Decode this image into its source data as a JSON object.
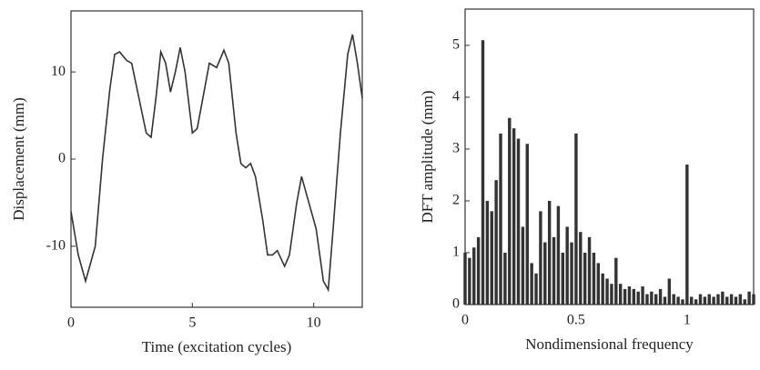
{
  "chart_data": [
    {
      "type": "line",
      "x_label": "Time (excitation cycles)",
      "y_label": "Displacement (mm)",
      "x": [
        0,
        0.3,
        0.6,
        1,
        1.3,
        1.6,
        1.8,
        2.0,
        2.3,
        2.5,
        2.8,
        3.1,
        3.3,
        3.5,
        3.7,
        3.9,
        4.1,
        4.3,
        4.5,
        4.7,
        5.0,
        5.2,
        5.5,
        5.7,
        6.0,
        6.3,
        6.5,
        6.8,
        7.0,
        7.2,
        7.4,
        7.6,
        7.9,
        8.1,
        8.3,
        8.5,
        8.8,
        9.0,
        9.3,
        9.5,
        9.8,
        10.1,
        10.4,
        10.6,
        10.8,
        11.1,
        11.4,
        11.6,
        11.8,
        12.0
      ],
      "values": [
        -6,
        -11,
        -14,
        -10,
        0,
        8,
        12,
        12.3,
        11.3,
        11,
        7,
        3,
        2.5,
        7,
        12.3,
        11,
        7.7,
        10,
        12.8,
        10,
        3,
        3.5,
        8,
        11,
        10.5,
        12.5,
        11,
        3,
        -0.5,
        -1,
        -0.5,
        -2,
        -7,
        -11,
        -11,
        -10.5,
        -12.3,
        -11,
        -5,
        -2,
        -5,
        -8,
        -14,
        -15,
        -8,
        3,
        12,
        14.3,
        11,
        7
      ],
      "color": "#333333",
      "xlim": [
        0,
        12
      ],
      "ylim": [
        -17,
        17
      ],
      "xticks": [
        0,
        5,
        10
      ],
      "yticks": [
        -10,
        0,
        10
      ]
    },
    {
      "type": "bar",
      "x_label": "Nondimensional frequency",
      "y_label": "DFT amplitude (mm)",
      "x": [
        0,
        0.02,
        0.04,
        0.06,
        0.08,
        0.1,
        0.12,
        0.14,
        0.16,
        0.18,
        0.2,
        0.22,
        0.24,
        0.26,
        0.28,
        0.3,
        0.32,
        0.34,
        0.36,
        0.38,
        0.4,
        0.42,
        0.44,
        0.46,
        0.48,
        0.5,
        0.52,
        0.54,
        0.56,
        0.58,
        0.6,
        0.62,
        0.64,
        0.66,
        0.68,
        0.7,
        0.72,
        0.74,
        0.76,
        0.78,
        0.8,
        0.82,
        0.84,
        0.86,
        0.88,
        0.9,
        0.92,
        0.94,
        0.96,
        0.98,
        1.0,
        1.02,
        1.04,
        1.06,
        1.08,
        1.1,
        1.12,
        1.14,
        1.16,
        1.18,
        1.2,
        1.22,
        1.24,
        1.26,
        1.28,
        1.3
      ],
      "values": [
        1.0,
        0.9,
        1.1,
        1.3,
        5.1,
        2.0,
        1.8,
        2.4,
        3.3,
        1.0,
        3.6,
        3.4,
        3.2,
        1.5,
        3.1,
        0.8,
        0.6,
        1.8,
        1.2,
        2.0,
        1.3,
        1.9,
        1.0,
        1.5,
        1.2,
        3.3,
        1.4,
        1.0,
        1.3,
        1.0,
        0.8,
        0.6,
        0.5,
        0.4,
        0.9,
        0.4,
        0.3,
        0.35,
        0.3,
        0.25,
        0.35,
        0.2,
        0.25,
        0.2,
        0.3,
        0.15,
        0.5,
        0.2,
        0.15,
        0.1,
        2.7,
        0.15,
        0.1,
        0.2,
        0.15,
        0.2,
        0.15,
        0.2,
        0.25,
        0.15,
        0.2,
        0.15,
        0.2,
        0.1,
        0.25,
        0.2
      ],
      "color": "#333333",
      "xlim": [
        0,
        1.3
      ],
      "ylim": [
        0,
        5.7
      ],
      "xticks": [
        0,
        0.5,
        1
      ],
      "yticks": [
        0,
        1,
        2,
        3,
        4,
        5
      ]
    }
  ]
}
